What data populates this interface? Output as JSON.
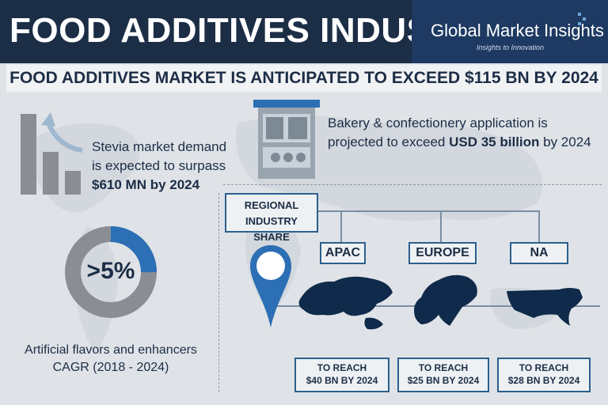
{
  "header": {
    "title": "FOOD ADDITIVES INDUSTRY",
    "logo_name": "Global Market Insights",
    "logo_tagline": "Insights to Innovation"
  },
  "headline": "FOOD ADDITIVES MARKET IS ANTICIPATED TO EXCEED $115 BN BY 2024",
  "stevia": {
    "line1": "Stevia market demand",
    "line2": "is expected to surpass",
    "line3": "$610 MN by 2024"
  },
  "cagr": {
    "value_label": ">5%",
    "fraction": 0.25,
    "caption_line1": "Artificial flavors and enhancers",
    "caption_line2": "CAGR (2018 - 2024)"
  },
  "bakery": {
    "line1": "Bakery & confectionery application is",
    "line2_prefix": "projected to exceed ",
    "line2_bold": "USD 35 billion",
    "line2_suffix": " by 2024"
  },
  "regional": {
    "label_line1": "REGIONAL",
    "label_line2": "INDUSTRY SHARE",
    "regions": [
      {
        "name": "APAC",
        "reach_line1": "TO REACH",
        "reach_line2": "$40 BN BY 2024"
      },
      {
        "name": "EUROPE",
        "reach_line1": "TO REACH",
        "reach_line2": "$25 BN BY 2024"
      },
      {
        "name": "NA",
        "reach_line1": "TO REACH",
        "reach_line2": "$28 BN BY 2024"
      }
    ]
  },
  "colors": {
    "navy": "#1c2d46",
    "accent_blue": "#2c6fb5",
    "gray": "#8a8e94",
    "map_blue": "#0f2a4a"
  }
}
